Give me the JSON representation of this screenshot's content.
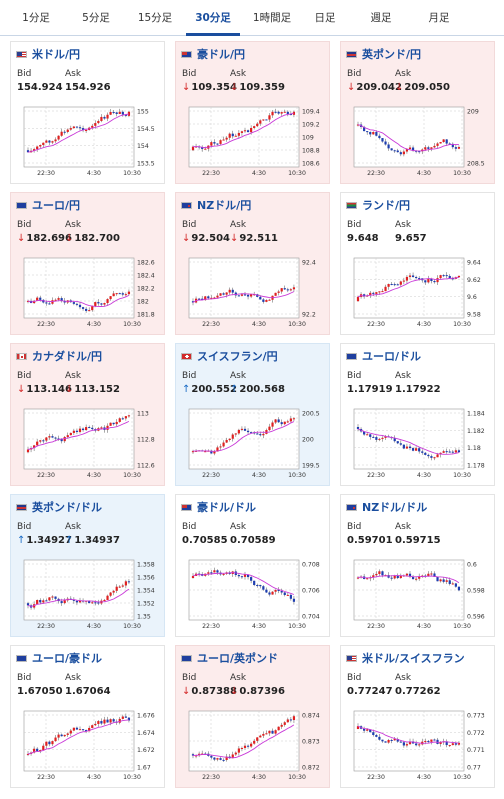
{
  "timeframes": [
    {
      "label": "1分足",
      "active": false
    },
    {
      "label": "5分足",
      "active": false
    },
    {
      "label": "15分足",
      "active": false
    },
    {
      "label": "30分足",
      "active": true
    },
    {
      "label": "1時間足",
      "active": false
    },
    {
      "label": "日足",
      "active": false
    },
    {
      "label": "週足",
      "active": false
    },
    {
      "label": "月足",
      "active": false
    }
  ],
  "labels": {
    "bid": "Bid",
    "ask": "Ask"
  },
  "direction_icons": {
    "up": "↑",
    "down": "↓"
  },
  "colors": {
    "up": "#1769c4",
    "down": "#d42a2a",
    "candle_up": "#e02020",
    "candle_down": "#1d3db0",
    "ma_line": "#c93ad8",
    "brand": "#1a4e9e"
  },
  "pairs": [
    {
      "name": "米ドル/円",
      "flag": "us-flag-icon",
      "direction": "none",
      "bid": "154.924",
      "ask": "154.926",
      "chart": {
        "y_ticks": [
          "155",
          "154.5",
          "154",
          "153.5"
        ],
        "x_ticks": [
          "22:30",
          "4:30",
          "10:30"
        ]
      }
    },
    {
      "name": "豪ドル/円",
      "flag": "au-flag-icon",
      "direction": "down",
      "bid": "109.354",
      "ask": "109.359",
      "chart": {
        "y_ticks": [
          "109.4",
          "109.2",
          "109",
          "108.8",
          "108.6"
        ],
        "x_ticks": [
          "22:30",
          "4:30",
          "10:30"
        ]
      }
    },
    {
      "name": "英ポンド/円",
      "flag": "gb-flag-icon",
      "direction": "down",
      "bid": "209.042",
      "ask": "209.050",
      "chart": {
        "y_ticks": [
          "209",
          "208.5"
        ],
        "x_ticks": [
          "22:30",
          "4:30",
          "10:30"
        ]
      }
    },
    {
      "name": "ユーロ/円",
      "flag": "eu-flag-icon",
      "direction": "down",
      "bid": "182.696",
      "ask": "182.700",
      "chart": {
        "y_ticks": [
          "182.6",
          "182.4",
          "182.2",
          "182",
          "181.8"
        ],
        "x_ticks": [
          "22:30",
          "4:30",
          "10:30"
        ]
      }
    },
    {
      "name": "NZドル/円",
      "flag": "nz-flag-icon",
      "direction": "down",
      "bid": "92.504",
      "ask": "92.511",
      "chart": {
        "y_ticks": [
          "92.4",
          "92.2"
        ],
        "x_ticks": [
          "22:30",
          "4:30",
          "10:30"
        ]
      }
    },
    {
      "name": "ランド/円",
      "flag": "za-flag-icon",
      "direction": "none",
      "bid": "9.648",
      "ask": "9.657",
      "chart": {
        "y_ticks": [
          "9.64",
          "9.62",
          "9.6",
          "9.58"
        ],
        "x_ticks": [
          "22:30",
          "4:30",
          "10:30"
        ]
      }
    },
    {
      "name": "カナダドル/円",
      "flag": "ca-flag-icon",
      "direction": "down",
      "bid": "113.146",
      "ask": "113.152",
      "chart": {
        "y_ticks": [
          "113",
          "112.8",
          "112.6"
        ],
        "x_ticks": [
          "22:30",
          "4:30",
          "10:30"
        ]
      }
    },
    {
      "name": "スイスフラン/円",
      "flag": "ch-flag-icon",
      "direction": "up",
      "bid": "200.552",
      "ask": "200.568",
      "chart": {
        "y_ticks": [
          "200.5",
          "200",
          "199.5"
        ],
        "x_ticks": [
          "22:30",
          "4:30",
          "10:30"
        ]
      }
    },
    {
      "name": "ユーロ/ドル",
      "flag": "eu-flag-icon",
      "direction": "none",
      "bid": "1.17919",
      "ask": "1.17922",
      "chart": {
        "y_ticks": [
          "1.184",
          "1.182",
          "1.18",
          "1.178"
        ],
        "x_ticks": [
          "22:30",
          "4:30",
          "10:30"
        ]
      }
    },
    {
      "name": "英ポンド/ドル",
      "flag": "gb-flag-icon",
      "direction": "up",
      "bid": "1.34927",
      "ask": "1.34937",
      "chart": {
        "y_ticks": [
          "1.358",
          "1.356",
          "1.354",
          "1.352",
          "1.35"
        ],
        "x_ticks": [
          "22:30",
          "4:30",
          "10:30"
        ]
      }
    },
    {
      "name": "豪ドル/ドル",
      "flag": "au-flag-icon",
      "direction": "none",
      "bid": "0.70585",
      "ask": "0.70589",
      "chart": {
        "y_ticks": [
          "0.708",
          "0.706",
          "0.704"
        ],
        "x_ticks": [
          "22:30",
          "4:30",
          "10:30"
        ]
      }
    },
    {
      "name": "NZドル/ドル",
      "flag": "nz-flag-icon",
      "direction": "none",
      "bid": "0.59701",
      "ask": "0.59715",
      "chart": {
        "y_ticks": [
          "0.6",
          "0.598",
          "0.596"
        ],
        "x_ticks": [
          "22:30",
          "4:30",
          "10:30"
        ]
      }
    },
    {
      "name": "ユーロ/豪ドル",
      "flag": "eu-flag-icon",
      "direction": "none",
      "bid": "1.67050",
      "ask": "1.67064",
      "chart": {
        "y_ticks": [
          "1.676",
          "1.674",
          "1.672",
          "1.67"
        ],
        "x_ticks": [
          "22:30",
          "4:30",
          "10:30"
        ]
      }
    },
    {
      "name": "ユーロ/英ポンド",
      "flag": "eu-flag-icon",
      "direction": "down",
      "bid": "0.87388",
      "ask": "0.87396",
      "chart": {
        "y_ticks": [
          "0.874",
          "0.873",
          "0.872"
        ],
        "x_ticks": [
          "22:30",
          "4:30",
          "10:30"
        ]
      }
    },
    {
      "name": "米ドル/スイスフラン",
      "flag": "us-flag-icon",
      "direction": "none",
      "bid": "0.77247",
      "ask": "0.77262",
      "chart": {
        "y_ticks": [
          "0.773",
          "0.772",
          "0.771",
          "0.77"
        ],
        "x_ticks": [
          "22:30",
          "4:30",
          "10:30"
        ]
      }
    }
  ]
}
